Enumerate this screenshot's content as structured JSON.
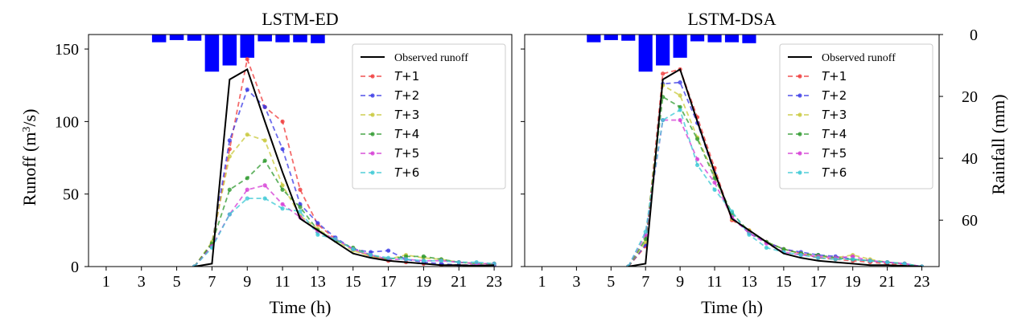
{
  "figure": {
    "y_left_label_main": "Runoff (m",
    "y_left_label_sup": "3",
    "y_left_label_end": "/s)",
    "y_right_label": "Rainfall (mm)",
    "x_label": "Time (h)"
  },
  "chart_data": [
    {
      "type": "line",
      "title": "LSTM-ED",
      "xlabel": "Time (h)",
      "ylabel": "Runoff (m3/s)",
      "y2label": "Rainfall (mm)",
      "xlim": [
        0,
        24
      ],
      "ylim": [
        0,
        160
      ],
      "y2lim": [
        0,
        75
      ],
      "x_ticks": [
        1,
        3,
        5,
        7,
        9,
        11,
        13,
        15,
        17,
        19,
        21,
        23
      ],
      "y_ticks": [
        0,
        50,
        100,
        150
      ],
      "y2_ticks": [
        0,
        20,
        40,
        60
      ],
      "legend_position": "top-right",
      "rainfall": {
        "x": [
          4,
          5,
          6,
          7,
          8,
          9,
          10,
          11,
          12,
          13
        ],
        "values": [
          2.5,
          1.8,
          2,
          12,
          10,
          7.5,
          2.2,
          2.5,
          2.5,
          2.8
        ]
      },
      "observed": {
        "name": "Observed runoff",
        "x": [
          6,
          7,
          8,
          9,
          10,
          11,
          12,
          13,
          14,
          15,
          16,
          17,
          18,
          19,
          20,
          21,
          22,
          23
        ],
        "values": [
          0,
          2,
          129,
          136,
          100,
          65,
          33,
          25,
          17,
          9,
          6,
          4,
          3,
          2,
          1,
          1,
          0.5,
          1
        ]
      },
      "series": [
        {
          "name": "+1",
          "prefix": "T",
          "color": "#f03a3a",
          "values": [
            0,
            15,
            81,
            143,
            110,
            100,
            53,
            29,
            19,
            12,
            7,
            4,
            3,
            2,
            1,
            1,
            1,
            1
          ]
        },
        {
          "name": "+2",
          "prefix": "T",
          "color": "#3a3ae6",
          "values": [
            0,
            16,
            87,
            122,
            110,
            81,
            43,
            30,
            20,
            12,
            10,
            11,
            5,
            3,
            2,
            1,
            1,
            1
          ]
        },
        {
          "name": "+3",
          "prefix": "T",
          "color": "#c8c83a",
          "values": [
            0,
            17,
            76,
            91,
            87,
            56,
            35,
            26,
            18,
            11,
            7,
            5,
            8,
            6,
            5,
            3,
            2,
            2
          ]
        },
        {
          "name": "+4",
          "prefix": "T",
          "color": "#2e9a2e",
          "values": [
            0,
            16,
            53,
            61,
            73,
            53,
            41,
            25,
            18,
            13,
            8,
            5,
            7,
            7,
            5,
            3,
            2,
            2
          ]
        },
        {
          "name": "+5",
          "prefix": "T",
          "color": "#d43ad4",
          "values": [
            0,
            14,
            36,
            53,
            56,
            43,
            34,
            24,
            19,
            12,
            8,
            5,
            5,
            4,
            4,
            3,
            2,
            2
          ]
        },
        {
          "name": "+6",
          "prefix": "T",
          "color": "#3ac8d4",
          "values": [
            0,
            13,
            36,
            47,
            47,
            40,
            38,
            22,
            19,
            12,
            8,
            6,
            5,
            4,
            4,
            3,
            3,
            2
          ]
        }
      ]
    },
    {
      "type": "line",
      "title": "LSTM-DSA",
      "xlabel": "Time (h)",
      "ylabel": "Runoff (m3/s)",
      "y2label": "Rainfall (mm)",
      "xlim": [
        0,
        24
      ],
      "ylim": [
        0,
        160
      ],
      "y2lim": [
        0,
        75
      ],
      "x_ticks": [
        1,
        3,
        5,
        7,
        9,
        11,
        13,
        15,
        17,
        19,
        21,
        23
      ],
      "y_ticks": [
        0,
        50,
        100,
        150
      ],
      "y2_ticks": [
        0,
        20,
        40,
        60
      ],
      "legend_position": "top-right",
      "rainfall": {
        "x": [
          4,
          5,
          6,
          7,
          8,
          9,
          10,
          11,
          12,
          13
        ],
        "values": [
          2.5,
          1.8,
          2,
          12,
          10,
          7.5,
          2.2,
          2.5,
          2.5,
          2.8
        ]
      },
      "observed": {
        "name": "Observed runoff",
        "x": [
          6,
          7,
          8,
          9,
          10,
          11,
          12,
          13,
          14,
          15,
          16,
          17,
          18,
          19,
          20,
          21,
          22,
          23
        ],
        "values": [
          0,
          2,
          129,
          136,
          100,
          65,
          33,
          25,
          17,
          9,
          6,
          4,
          3,
          2,
          1,
          1,
          0.5,
          0
        ]
      },
      "series": [
        {
          "name": "+1",
          "prefix": "T",
          "color": "#f03a3a",
          "values": [
            0,
            14,
            133,
            136,
            103,
            68,
            32,
            25,
            17,
            12,
            9,
            6,
            5,
            4,
            3,
            2,
            1,
            0
          ]
        },
        {
          "name": "+2",
          "prefix": "T",
          "color": "#3a3ae6",
          "values": [
            0,
            15,
            126,
            127,
            99,
            64,
            34,
            23,
            17,
            12,
            10,
            8,
            7,
            5,
            4,
            3,
            2,
            0
          ]
        },
        {
          "name": "+3",
          "prefix": "T",
          "color": "#c8c83a",
          "values": [
            0,
            17,
            125,
            118,
            89,
            63,
            33,
            25,
            17,
            12,
            9,
            7,
            6,
            8,
            5,
            3,
            2,
            0
          ]
        },
        {
          "name": "+4",
          "prefix": "T",
          "color": "#2e9a2e",
          "values": [
            0,
            19,
            117,
            110,
            88,
            61,
            37,
            24,
            17,
            12,
            9,
            8,
            6,
            5,
            4,
            3,
            2,
            0
          ]
        },
        {
          "name": "+5",
          "prefix": "T",
          "color": "#d43ad4",
          "values": [
            0,
            22,
            101,
            101,
            74,
            58,
            34,
            23,
            16,
            10,
            8,
            7,
            6,
            7,
            4,
            3,
            2,
            0
          ]
        },
        {
          "name": "+6",
          "prefix": "T",
          "color": "#3ac8d4",
          "values": [
            0,
            24,
            101,
            108,
            70,
            53,
            38,
            22,
            13,
            10,
            8,
            6,
            5,
            5,
            4,
            3,
            2,
            0
          ]
        }
      ]
    }
  ]
}
